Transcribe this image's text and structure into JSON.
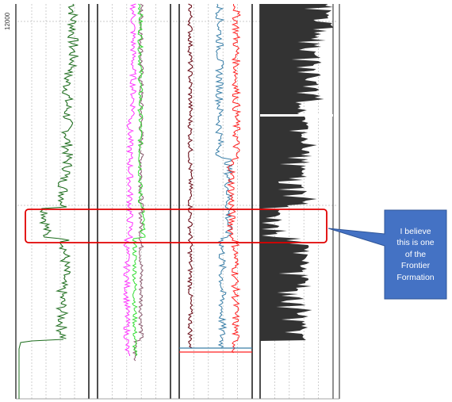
{
  "depth_axis": {
    "label": "12000"
  },
  "callout": {
    "lines": [
      "I believe",
      "this is one",
      "of  the",
      "Frontier",
      "Formation"
    ],
    "fill": "#4472C4",
    "highlight_color": "#E00000"
  },
  "colors": {
    "track1_curve": "#1F6E1F",
    "track2_curve_a": "#FF33FF",
    "track2_curve_b": "#33DD33",
    "track2_curve_c": "#8A5A6E",
    "track3_curve_a": "#6B0F1A",
    "track3_curve_b": "#3A7FA8",
    "track3_curve_c": "#FF2020",
    "track4_fill": "#333333",
    "grid": "#BBBBBB"
  }
}
